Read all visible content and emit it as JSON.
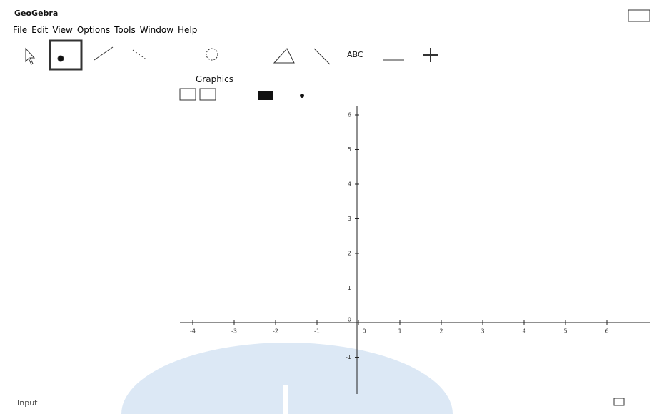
{
  "window": {
    "title": "GeoGebra"
  },
  "menu": [
    "File",
    "Edit",
    "View",
    "Options",
    "Tools",
    "Window",
    "Help"
  ],
  "toolbar": {
    "text_tool": "ABC"
  },
  "graphics": {
    "title": "Graphics",
    "xticks": [
      -4,
      -3,
      -2,
      -1,
      0,
      1,
      2,
      3,
      4,
      5,
      6
    ],
    "yticks": [
      -1,
      0,
      1,
      2,
      3,
      4,
      5,
      6
    ]
  },
  "input": {
    "label": "Input"
  }
}
